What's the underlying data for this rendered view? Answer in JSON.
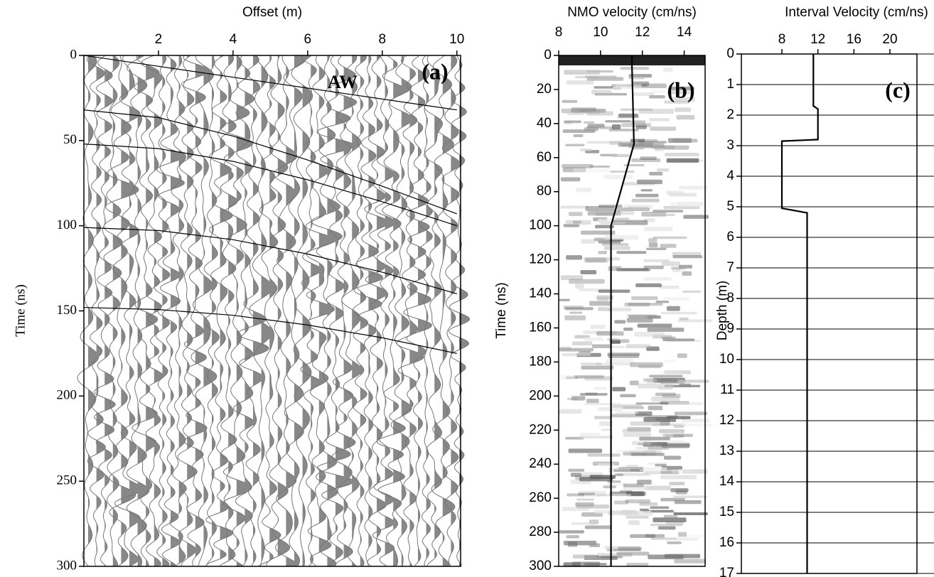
{
  "chart_data": [
    {
      "type": "wiggle",
      "xlabel": "Offset (m)",
      "ylabel": "Time (ns)",
      "xlim": [
        0,
        10.1
      ],
      "xticks": [
        2,
        4,
        6,
        8,
        10
      ],
      "ylim": [
        0,
        300
      ],
      "yticks": [
        0,
        50,
        100,
        150,
        200,
        250,
        300
      ],
      "annotations": [
        "AW",
        "(a)"
      ],
      "color": "#000000",
      "lines": [
        {
          "x": [
            0,
            2,
            4,
            6,
            8,
            10
          ],
          "values": [
            0,
            6.4,
            12.8,
            19.2,
            25.6,
            32
          ]
        },
        {
          "x": [
            0,
            2,
            4,
            6,
            8,
            10
          ],
          "values": [
            32,
            36.5,
            47.4,
            61.4,
            76.8,
            93
          ]
        },
        {
          "x": [
            0,
            2,
            4,
            6,
            8,
            10
          ],
          "values": [
            52,
            54.7,
            62.2,
            73,
            85.9,
            100
          ]
        },
        {
          "x": [
            0,
            2,
            4,
            6,
            8,
            10
          ],
          "values": [
            101,
            102.8,
            108.2,
            116.6,
            127.3,
            140
          ]
        },
        {
          "x": [
            0,
            2,
            4,
            6,
            8,
            10
          ],
          "values": [
            148,
            149.2,
            152.6,
            158.3,
            165.8,
            175
          ]
        }
      ]
    },
    {
      "type": "semblance",
      "xlabel": "NMO velocity (cm/ns)",
      "ylabel": "Time (ns)",
      "xlim": [
        8,
        15
      ],
      "xticks": [
        8,
        10,
        12,
        14
      ],
      "ylim": [
        0,
        300
      ],
      "yticks": [
        0,
        20,
        40,
        60,
        80,
        100,
        120,
        140,
        160,
        180,
        200,
        220,
        240,
        260,
        280,
        300
      ],
      "annotations": [
        "(b)"
      ],
      "color": "#000000",
      "lines": [
        {
          "x": [
            11.5,
            11.5,
            11.6,
            10.5,
            10.5
          ],
          "values": [
            0,
            5,
            52,
            100,
            300
          ]
        }
      ]
    },
    {
      "type": "profile",
      "xlabel": "Interval Velocity (cm/ns)",
      "ylabel": "Depth (m)",
      "xlim": [
        3.5,
        23
      ],
      "xticks": [
        8,
        12,
        16,
        20
      ],
      "ylim": [
        0,
        17
      ],
      "yticks": [
        0,
        1,
        2,
        3,
        4,
        5,
        6,
        7,
        8,
        9,
        10,
        11,
        12,
        13,
        14,
        15,
        16,
        17
      ],
      "grid": true,
      "annotations": [
        "(c)"
      ],
      "color": "#000000",
      "lines": [
        {
          "x": [
            11.5,
            11.5,
            12,
            12,
            8,
            8,
            10.8,
            10.8
          ],
          "values": [
            0,
            1.7,
            1.8,
            2.8,
            2.85,
            5.05,
            5.2,
            17
          ]
        }
      ]
    }
  ]
}
